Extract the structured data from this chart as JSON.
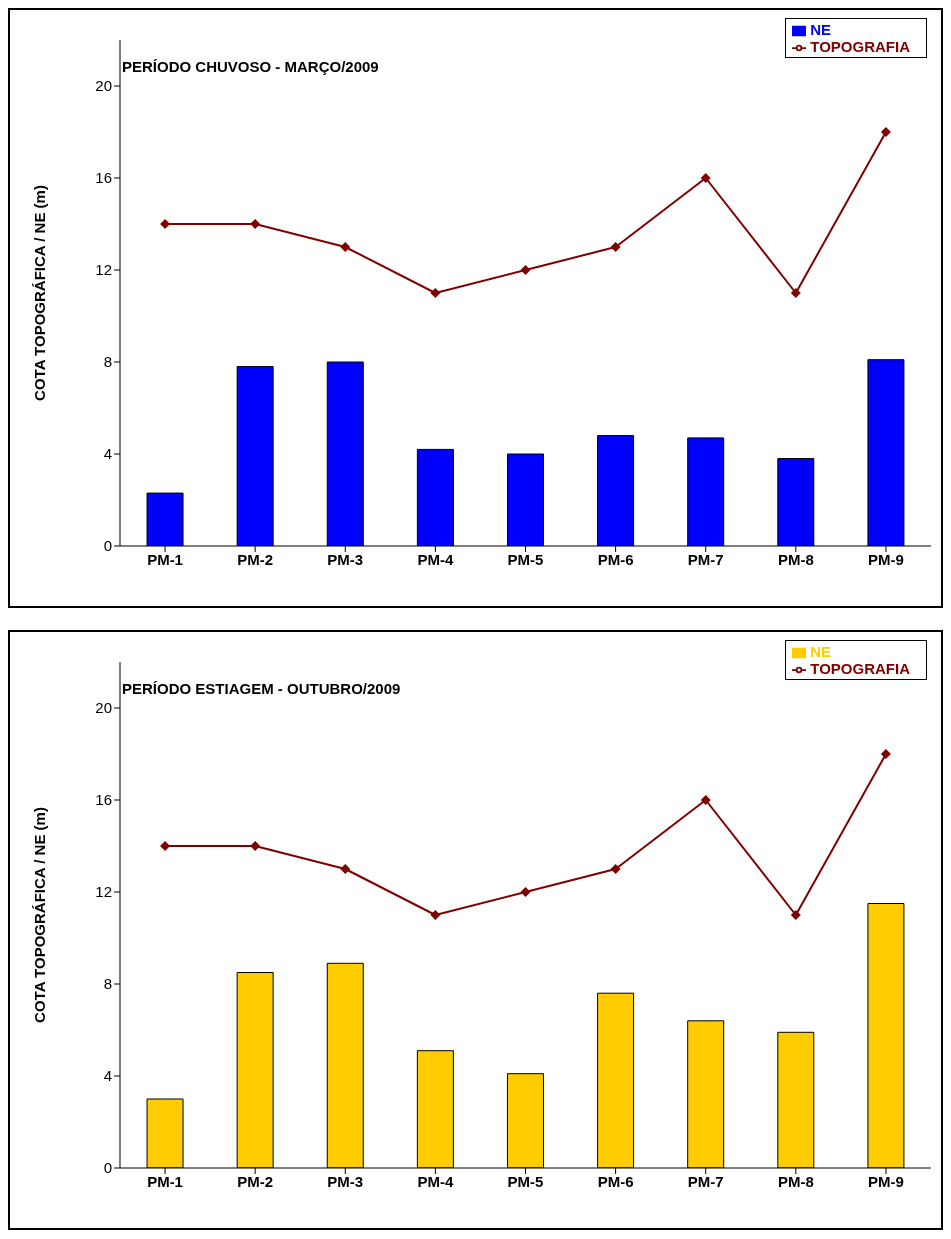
{
  "chart_data": [
    {
      "type": "bar",
      "title": "PERÍODO CHUVOSO - MARÇO/2009",
      "ylabel": "COTA TOPOGRÁFICA / NE (m)",
      "categories": [
        "PM-1",
        "PM-2",
        "PM-3",
        "PM-4",
        "PM-5",
        "PM-6",
        "PM-7",
        "PM-8",
        "PM-9"
      ],
      "ylim": [
        0,
        22
      ],
      "yticks": [
        0,
        4,
        8,
        12,
        16,
        20
      ],
      "grid": false,
      "legend": "top right",
      "series": [
        {
          "name": "NE",
          "color": "#0000ff",
          "values": [
            2.3,
            7.8,
            8.0,
            4.2,
            4.0,
            4.8,
            4.7,
            3.8,
            8.1
          ]
        },
        {
          "name": "TOPOGRAFIA",
          "type": "line",
          "color": "#800000",
          "marker": "diamond",
          "values": [
            14,
            14,
            13,
            11,
            12,
            13,
            16,
            11,
            18
          ]
        }
      ]
    },
    {
      "type": "bar",
      "title": "PERÍODO ESTIAGEM - OUTUBRO/2009",
      "ylabel": "COTA TOPOGRÁFICA / NE (m)",
      "categories": [
        "PM-1",
        "PM-2",
        "PM-3",
        "PM-4",
        "PM-5",
        "PM-6",
        "PM-7",
        "PM-8",
        "PM-9"
      ],
      "ylim": [
        0,
        22
      ],
      "yticks": [
        0,
        4,
        8,
        12,
        16,
        20
      ],
      "grid": false,
      "legend": "top right",
      "series": [
        {
          "name": "NE",
          "color": "#ffcc00",
          "values": [
            3.0,
            8.5,
            8.9,
            5.1,
            4.1,
            7.6,
            6.4,
            5.9,
            11.5
          ]
        },
        {
          "name": "TOPOGRAFIA",
          "type": "line",
          "color": "#800000",
          "marker": "diamond",
          "values": [
            14,
            14,
            13,
            11,
            12,
            13,
            16,
            11,
            18
          ]
        }
      ]
    }
  ]
}
